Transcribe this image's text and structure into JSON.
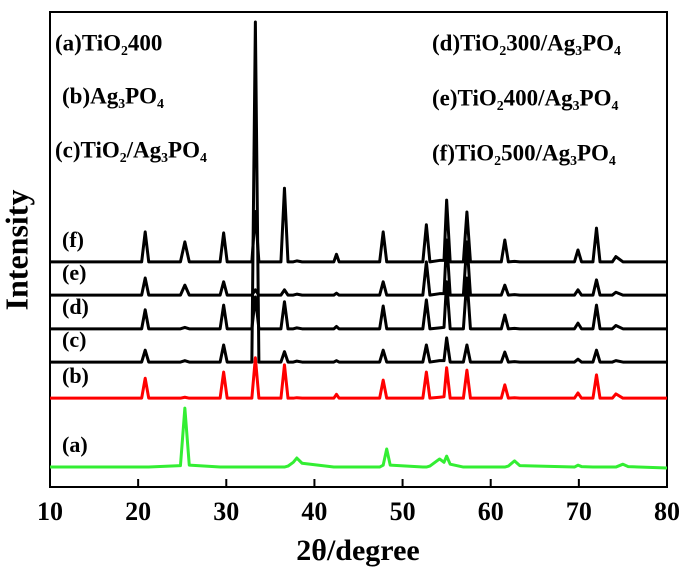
{
  "chart_data": {
    "type": "line",
    "xlabel": "2θ/degree",
    "ylabel": "Intensity",
    "annotations": [
      "(a)TiO₂400",
      "(b)Ag₃PO₄",
      "(c)TiO₂/Ag₃PO₄",
      "(d)TiO₂300/Ag₃PO₄",
      "(e)TiO₂400/Ag₃PO₄",
      "(f)TiO₂500/Ag₃PO₄"
    ],
    "xlim": [
      10,
      80
    ],
    "xticks": [
      10,
      20,
      30,
      40,
      50,
      60,
      70,
      80
    ],
    "ylim": [
      0,
      100
    ],
    "x": [
      10,
      20.4,
      20.8,
      21.2,
      24.8,
      25.3,
      25.8,
      29.3,
      29.7,
      30.1,
      32.9,
      33.3,
      33.7,
      36.2,
      36.6,
      37.0,
      37.6,
      38.0,
      38.6,
      42.2,
      42.5,
      42.8,
      47.4,
      47.8,
      48.2,
      48.6,
      52.3,
      52.7,
      53.1,
      54.2,
      54.7,
      55.0,
      55.4,
      56.9,
      57.3,
      57.7,
      61.2,
      61.6,
      62.0,
      62.7,
      63.3,
      69.5,
      69.9,
      70.3,
      71.6,
      72.0,
      72.4,
      73.8,
      74.2,
      75.0,
      75.6,
      80
    ],
    "series": [
      {
        "name": "(a)",
        "color": "#33ee33",
        "values": [
          4.2,
          4.2,
          4.2,
          4.2,
          4.5,
          16.6,
          4.6,
          4.2,
          4.2,
          4.2,
          4.2,
          4.2,
          4.2,
          4.2,
          4.2,
          4.4,
          5.2,
          6.1,
          5.0,
          4.2,
          4.2,
          4.2,
          4.2,
          4.6,
          8.0,
          4.6,
          4.2,
          4.2,
          4.4,
          5.9,
          5.2,
          6.5,
          4.8,
          4.2,
          4.2,
          4.2,
          4.2,
          4.2,
          4.4,
          5.5,
          4.5,
          4.2,
          4.6,
          4.3,
          4.2,
          4.2,
          4.2,
          4.2,
          4.2,
          4.8,
          4.3,
          4.0
        ]
      },
      {
        "name": "(b)",
        "color": "#ff0000",
        "values": [
          18.7,
          18.7,
          22.9,
          18.7,
          18.7,
          18.9,
          18.7,
          18.7,
          24.2,
          18.7,
          18.7,
          27.2,
          18.7,
          18.7,
          25.7,
          18.7,
          18.7,
          18.8,
          18.7,
          18.7,
          19.5,
          18.7,
          18.7,
          22.5,
          18.7,
          18.7,
          18.7,
          24.2,
          18.7,
          18.9,
          19.0,
          25.1,
          18.7,
          18.7,
          24.6,
          18.7,
          18.7,
          21.5,
          18.7,
          18.8,
          18.7,
          18.7,
          19.8,
          18.7,
          18.7,
          23.6,
          18.7,
          18.7,
          19.6,
          18.7,
          18.7,
          18.7
        ]
      },
      {
        "name": "(c)",
        "color": "#000000",
        "values": [
          26.3,
          26.3,
          28.8,
          26.3,
          26.3,
          26.6,
          26.3,
          26.3,
          29.9,
          26.3,
          26.3,
          97.9,
          26.3,
          26.3,
          28.5,
          26.3,
          26.3,
          26.5,
          26.3,
          26.3,
          26.6,
          26.3,
          26.3,
          28.8,
          26.3,
          26.3,
          26.3,
          29.9,
          26.3,
          26.6,
          26.6,
          31.4,
          26.3,
          26.3,
          29.9,
          26.3,
          26.3,
          28.4,
          26.3,
          26.4,
          26.3,
          26.3,
          26.9,
          26.3,
          26.3,
          28.8,
          26.3,
          26.3,
          26.6,
          26.3,
          26.3,
          26.3
        ]
      },
      {
        "name": "(d)",
        "color": "#000000",
        "values": [
          33.3,
          33.3,
          37.3,
          33.3,
          33.3,
          33.6,
          33.3,
          33.3,
          38.3,
          33.3,
          33.3,
          40.0,
          33.3,
          33.3,
          39.0,
          33.3,
          33.3,
          33.5,
          33.3,
          33.3,
          33.8,
          33.3,
          33.3,
          38.1,
          33.3,
          33.3,
          33.3,
          39.4,
          33.3,
          33.5,
          33.6,
          43.2,
          33.3,
          33.3,
          44.0,
          33.3,
          33.3,
          36.2,
          33.3,
          33.4,
          33.3,
          33.3,
          34.5,
          33.3,
          33.3,
          38.3,
          33.3,
          33.3,
          34.0,
          33.3,
          33.3,
          33.3
        ]
      },
      {
        "name": "(e)",
        "color": "#000000",
        "values": [
          40.4,
          40.4,
          44.0,
          40.4,
          40.4,
          42.5,
          40.4,
          40.4,
          43.2,
          40.4,
          40.4,
          41.5,
          40.4,
          40.4,
          41.5,
          40.4,
          40.4,
          40.6,
          40.4,
          40.4,
          40.8,
          40.4,
          40.4,
          43.2,
          40.4,
          40.4,
          40.4,
          47.4,
          40.4,
          40.7,
          40.7,
          52.0,
          40.4,
          40.4,
          51.6,
          40.4,
          40.4,
          42.5,
          40.4,
          40.5,
          40.4,
          40.4,
          41.5,
          40.4,
          40.4,
          43.6,
          40.4,
          40.4,
          41.0,
          40.4,
          40.4,
          40.4
        ]
      },
      {
        "name": "(f)",
        "color": "#000000",
        "values": [
          47.4,
          47.4,
          53.7,
          47.4,
          47.4,
          51.6,
          47.4,
          47.4,
          53.5,
          47.4,
          47.4,
          58.0,
          47.4,
          47.4,
          62.9,
          47.4,
          47.4,
          47.6,
          47.4,
          47.4,
          49.0,
          47.4,
          47.4,
          53.7,
          47.4,
          47.4,
          47.4,
          55.2,
          47.4,
          47.7,
          47.7,
          60.4,
          47.4,
          47.4,
          57.9,
          47.4,
          47.4,
          52.0,
          47.4,
          47.5,
          47.4,
          47.4,
          49.9,
          47.4,
          47.4,
          54.5,
          47.4,
          47.4,
          48.5,
          47.4,
          47.4,
          47.4
        ]
      }
    ]
  }
}
